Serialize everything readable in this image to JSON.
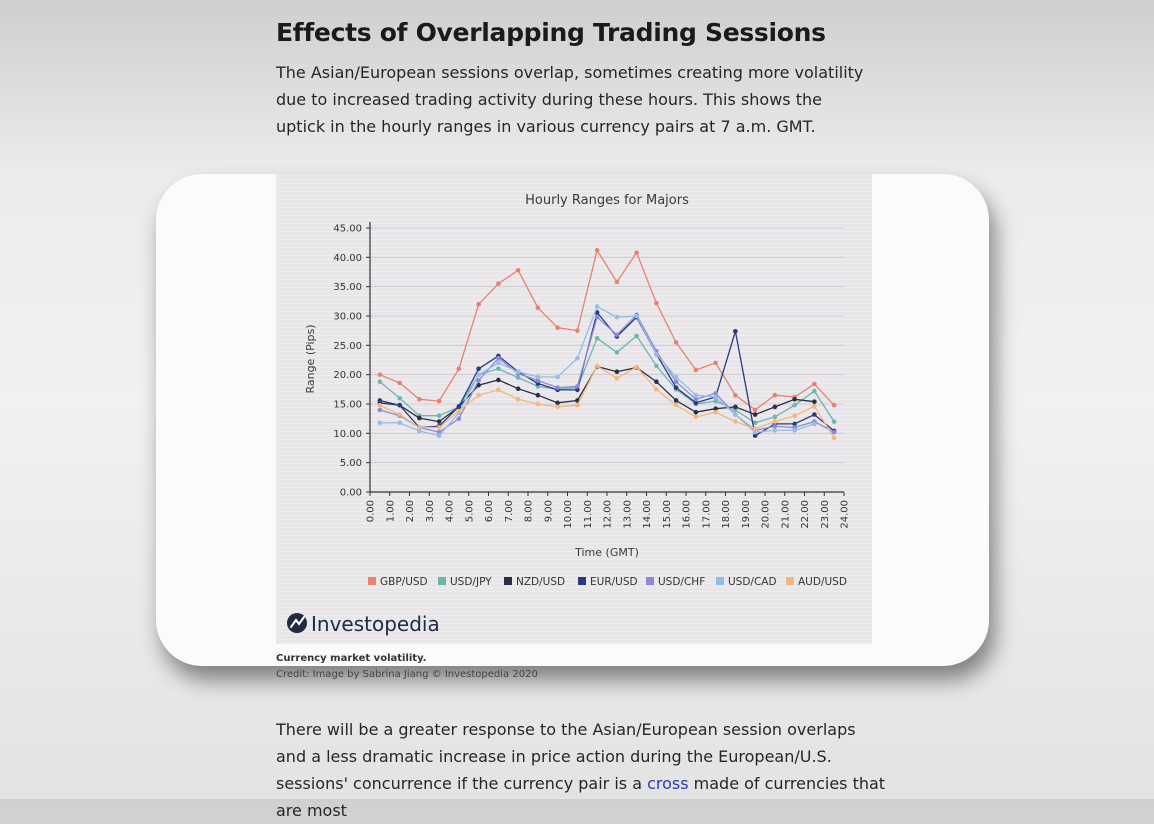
{
  "article": {
    "heading": "Effects of Overlapping Trading Sessions",
    "intro": "The Asian/European sessions overlap, sometimes creating more volatility due to increased trading activity during these hours. This shows the uptick in the hourly ranges in various currency pairs at 7 a.m. GMT.",
    "caption": "Currency market volatility.",
    "credit": "Credit: Image by Sabrina Jiang © Investopedia 2020",
    "paragraph_before_link": "There will be a greater response to the Asian/European session overlaps and a less dramatic increase in price action during the European/U.S. sessions' concurrence if the currency pair is a ",
    "link_text": "cross",
    "paragraph_after_link": " made of currencies that are most"
  },
  "logo": {
    "text": "Investopedia"
  },
  "chart_data": {
    "type": "line",
    "title": "Hourly Ranges for Majors",
    "xlabel": "Time (GMT)",
    "ylabel": "Range (Pips)",
    "ylim": [
      0,
      45
    ],
    "xlim": [
      0,
      24
    ],
    "yticks": [
      "0.00",
      "5.00",
      "10.00",
      "15.00",
      "20.00",
      "25.00",
      "30.00",
      "35.00",
      "40.00",
      "45.00"
    ],
    "xticks": [
      "0.00",
      "1.00",
      "2.00",
      "3.00",
      "4.00",
      "5.00",
      "6.00",
      "7.00",
      "8.00",
      "9.00",
      "10.00",
      "11.00",
      "12.00",
      "13.00",
      "14.00",
      "15.00",
      "16.00",
      "17.00",
      "18.00",
      "19.00",
      "20.00",
      "21.00",
      "22.00",
      "23.00",
      "24.00"
    ],
    "grid": true,
    "legend_position": "bottom",
    "x": [
      0.5,
      1.5,
      2.5,
      3.5,
      4.5,
      5.5,
      6.5,
      7.5,
      8.5,
      9.5,
      10.5,
      11.5,
      12.5,
      13.5,
      14.5,
      15.5,
      16.5,
      17.5,
      18.5,
      19.5,
      20.5,
      21.5,
      22.5,
      23.5
    ],
    "series": [
      {
        "name": "GBP/USD",
        "color": "#e8826f",
        "values": [
          20,
          18.6,
          15.8,
          15.5,
          21,
          32,
          35.5,
          37.8,
          31.4,
          28,
          27.5,
          41.2,
          35.8,
          40.8,
          32.2,
          25.5,
          20.8,
          22,
          16.5,
          14,
          16.5,
          16.2,
          18.4,
          14.8
        ]
      },
      {
        "name": "USD/JPY",
        "color": "#6fb5b0",
        "values": [
          18.8,
          16,
          13,
          13,
          14.5,
          20,
          21,
          19.5,
          18,
          17.5,
          17.8,
          26.2,
          23.8,
          26.6,
          21.5,
          17.5,
          15,
          15.5,
          14,
          11.8,
          12.8,
          14.8,
          17.2,
          12
        ]
      },
      {
        "name": "NZD/USD",
        "color": "#2b2f45",
        "values": [
          15.2,
          14.8,
          12.6,
          12,
          14.5,
          18.2,
          19.1,
          17.6,
          16.5,
          15.2,
          15.6,
          21.4,
          20.5,
          21.2,
          18.8,
          15.6,
          13.6,
          14.2,
          14.5,
          13.2,
          14.5,
          15.8,
          15.4,
          null
        ]
      },
      {
        "name": "EUR/USD",
        "color": "#283a82",
        "values": [
          15.6,
          14.8,
          11,
          11.2,
          14.6,
          21,
          23.2,
          20.5,
          18.5,
          17.4,
          17.4,
          30.6,
          26.5,
          29.8,
          23.5,
          17.8,
          15.2,
          16.2,
          27.4,
          9.6,
          11.6,
          11.6,
          13.2,
          10.4
        ]
      },
      {
        "name": "USD/CHF",
        "color": "#8c8ad8",
        "values": [
          14,
          13,
          11,
          10.2,
          12.5,
          19,
          22.8,
          20.2,
          19,
          17.8,
          18,
          29.8,
          26.8,
          30.2,
          24,
          18.8,
          15.8,
          16.8,
          13.2,
          10.5,
          11.2,
          11,
          12,
          10.2
        ]
      },
      {
        "name": "USD/CAD",
        "color": "#94bde8",
        "values": [
          11.8,
          11.8,
          10.4,
          9.6,
          13.5,
          20,
          22,
          20.5,
          19.6,
          19.6,
          22.8,
          31.6,
          29.8,
          30,
          23.5,
          19.6,
          16.5,
          16.2,
          13.2,
          10.2,
          10.5,
          10.5,
          11.6,
          null
        ]
      },
      {
        "name": "AUD/USD",
        "color": "#f3b77a",
        "values": [
          14.8,
          13.2,
          11,
          11,
          13.8,
          16.5,
          17.4,
          15.8,
          15,
          14.5,
          14.8,
          21.5,
          19.4,
          21.3,
          17.5,
          14.8,
          12.8,
          13.6,
          12,
          10.8,
          12,
          13,
          14.6,
          9.2
        ]
      }
    ]
  }
}
